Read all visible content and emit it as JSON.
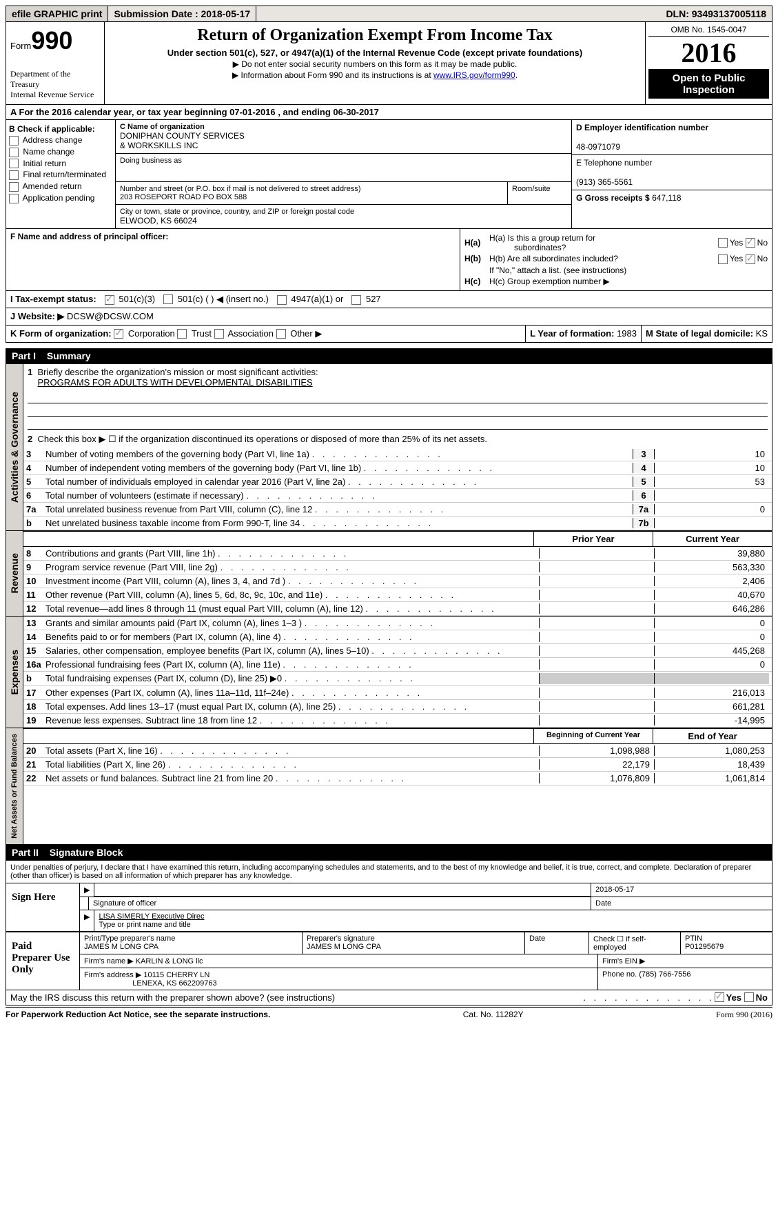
{
  "topbar": {
    "efile": "efile GRAPHIC print",
    "subdate_label": "Submission Date :",
    "subdate": "2018-05-17",
    "dln_label": "DLN:",
    "dln": "93493137005118"
  },
  "header": {
    "form": "Form",
    "num": "990",
    "dept1": "Department of the Treasury",
    "dept2": "Internal Revenue Service",
    "title": "Return of Organization Exempt From Income Tax",
    "sub": "Under section 501(c), 527, or 4947(a)(1) of the Internal Revenue Code (except private foundations)",
    "inst1": "▶ Do not enter social security numbers on this form as it may be made public.",
    "inst2": "▶ Information about Form 990 and its instructions is at ",
    "link": "www.IRS.gov/form990",
    "omb": "OMB No. 1545-0047",
    "year": "2016",
    "open": "Open to Public Inspection"
  },
  "rowA": {
    "text": "A  For the 2016 calendar year, or tax year beginning 07-01-2016   , and ending 06-30-2017"
  },
  "colB": {
    "head": "B Check if applicable:",
    "items": [
      "Address change",
      "Name change",
      "Initial return",
      "Final return/terminated",
      "Amended return",
      "Application pending"
    ]
  },
  "colC": {
    "name_label": "C Name of organization",
    "name1": "DONIPHAN COUNTY SERVICES",
    "name2": "& WORKSKILLS INC",
    "dba_label": "Doing business as",
    "addr_label": "Number and street (or P.O. box if mail is not delivered to street address)",
    "room_label": "Room/suite",
    "addr": "203 ROSEPORT ROAD PO BOX 588",
    "city_label": "City or town, state or province, country, and ZIP or foreign postal code",
    "city": "ELWOOD, KS  66024"
  },
  "colD": {
    "ein_label": "D Employer identification number",
    "ein": "48-0971079",
    "tel_label": "E Telephone number",
    "tel": "(913) 365-5561",
    "gross_label": "G Gross receipts $",
    "gross": "647,118"
  },
  "rowF": {
    "label": "F Name and address of principal officer:"
  },
  "rowH": {
    "ha": "H(a)  Is this a group return for",
    "ha2": "subordinates?",
    "hb": "H(b)  Are all subordinates included?",
    "hbnote": "If \"No,\" attach a list. (see instructions)",
    "hc": "H(c)  Group exemption number ▶",
    "yes": "Yes",
    "no": "No"
  },
  "rowI": {
    "label": "I  Tax-exempt status:",
    "o1": "501(c)(3)",
    "o2": "501(c) (  ) ◀ (insert no.)",
    "o3": "4947(a)(1) or",
    "o4": "527"
  },
  "rowJ": {
    "label": "J  Website: ▶",
    "val": "DCSW@DCSW.COM"
  },
  "rowK": {
    "label": "K Form of organization:",
    "corp": "Corporation",
    "trust": "Trust",
    "assoc": "Association",
    "other": "Other ▶",
    "year_label": "L Year of formation:",
    "year": "1983",
    "state_label": "M State of legal domicile:",
    "state": "KS"
  },
  "part1": {
    "title": "Part I",
    "name": "Summary"
  },
  "governance": {
    "tab": "Activities & Governance",
    "l1": "Briefly describe the organization's mission or most significant activities:",
    "l1v": "PROGRAMS FOR ADULTS WITH DEVELOPMENTAL DISABILITIES",
    "l2": "Check this box ▶  ☐  if the organization discontinued its operations or disposed of more than 25% of its net assets.",
    "rows": [
      {
        "n": "3",
        "d": "Number of voting members of the governing body (Part VI, line 1a)",
        "b": "3",
        "v": "10"
      },
      {
        "n": "4",
        "d": "Number of independent voting members of the governing body (Part VI, line 1b)",
        "b": "4",
        "v": "10"
      },
      {
        "n": "5",
        "d": "Total number of individuals employed in calendar year 2016 (Part V, line 2a)",
        "b": "5",
        "v": "53"
      },
      {
        "n": "6",
        "d": "Total number of volunteers (estimate if necessary)",
        "b": "6",
        "v": ""
      },
      {
        "n": "7a",
        "d": "Total unrelated business revenue from Part VIII, column (C), line 12",
        "b": "7a",
        "v": "0"
      },
      {
        "n": "b",
        "d": "Net unrelated business taxable income from Form 990-T, line 34",
        "b": "7b",
        "v": ""
      }
    ]
  },
  "colheads": {
    "prior": "Prior Year",
    "current": "Current Year",
    "beg": "Beginning of Current Year",
    "end": "End of Year"
  },
  "revenue": {
    "tab": "Revenue",
    "rows": [
      {
        "n": "8",
        "d": "Contributions and grants (Part VIII, line 1h)",
        "v1": "",
        "v2": "39,880"
      },
      {
        "n": "9",
        "d": "Program service revenue (Part VIII, line 2g)",
        "v1": "",
        "v2": "563,330"
      },
      {
        "n": "10",
        "d": "Investment income (Part VIII, column (A), lines 3, 4, and 7d )",
        "v1": "",
        "v2": "2,406"
      },
      {
        "n": "11",
        "d": "Other revenue (Part VIII, column (A), lines 5, 6d, 8c, 9c, 10c, and 11e)",
        "v1": "",
        "v2": "40,670"
      },
      {
        "n": "12",
        "d": "Total revenue—add lines 8 through 11 (must equal Part VIII, column (A), line 12)",
        "v1": "",
        "v2": "646,286"
      }
    ]
  },
  "expenses": {
    "tab": "Expenses",
    "rows": [
      {
        "n": "13",
        "d": "Grants and similar amounts paid (Part IX, column (A), lines 1–3 )",
        "v1": "",
        "v2": "0"
      },
      {
        "n": "14",
        "d": "Benefits paid to or for members (Part IX, column (A), line 4)",
        "v1": "",
        "v2": "0"
      },
      {
        "n": "15",
        "d": "Salaries, other compensation, employee benefits (Part IX, column (A), lines 5–10)",
        "v1": "",
        "v2": "445,268"
      },
      {
        "n": "16a",
        "d": "Professional fundraising fees (Part IX, column (A), line 11e)",
        "v1": "",
        "v2": "0"
      },
      {
        "n": "b",
        "d": "Total fundraising expenses (Part IX, column (D), line 25) ▶0",
        "v1": "grey",
        "v2": "grey"
      },
      {
        "n": "17",
        "d": "Other expenses (Part IX, column (A), lines 11a–11d, 11f–24e)",
        "v1": "",
        "v2": "216,013"
      },
      {
        "n": "18",
        "d": "Total expenses. Add lines 13–17 (must equal Part IX, column (A), line 25)",
        "v1": "",
        "v2": "661,281"
      },
      {
        "n": "19",
        "d": "Revenue less expenses. Subtract line 18 from line 12",
        "v1": "",
        "v2": "-14,995"
      }
    ]
  },
  "netassets": {
    "tab": "Net Assets or Fund Balances",
    "rows": [
      {
        "n": "20",
        "d": "Total assets (Part X, line 16)",
        "v1": "1,098,988",
        "v2": "1,080,253"
      },
      {
        "n": "21",
        "d": "Total liabilities (Part X, line 26)",
        "v1": "22,179",
        "v2": "18,439"
      },
      {
        "n": "22",
        "d": "Net assets or fund balances. Subtract line 21 from line 20",
        "v1": "1,076,809",
        "v2": "1,061,814"
      }
    ]
  },
  "part2": {
    "title": "Part II",
    "name": "Signature Block"
  },
  "perjury": "Under penalties of perjury, I declare that I have examined this return, including accompanying schedules and statements, and to the best of my knowledge and belief, it is true, correct, and complete. Declaration of preparer (other than officer) is based on all information of which preparer has any knowledge.",
  "sign": {
    "here": "Sign Here",
    "date": "2018-05-17",
    "sig_label": "Signature of officer",
    "date_label": "Date",
    "name": "LISA SIMERLY Executive Direc",
    "name_label": "Type or print name and title"
  },
  "paid": {
    "label": "Paid Preparer Use Only",
    "prep_label": "Print/Type preparer's name",
    "prep": "JAMES M LONG CPA",
    "sig_label": "Preparer's signature",
    "sig": "JAMES M LONG CPA",
    "date_label": "Date",
    "check_label": "Check ☐ if self-employed",
    "ptin_label": "PTIN",
    "ptin": "P01295679",
    "firm_label": "Firm's name   ▶",
    "firm": "KARLIN & LONG llc",
    "firm_ein_label": "Firm's EIN ▶",
    "addr_label": "Firm's address ▶",
    "addr": "10115 CHERRY LN",
    "addr2": "LENEXA, KS  662209763",
    "phone_label": "Phone no.",
    "phone": "(785) 766-7556"
  },
  "may": {
    "text": "May the IRS discuss this return with the preparer shown above? (see instructions)",
    "yes": "Yes",
    "no": "No"
  },
  "footer": {
    "l": "For Paperwork Reduction Act Notice, see the separate instructions.",
    "c": "Cat. No. 11282Y",
    "r": "Form 990 (2016)"
  }
}
